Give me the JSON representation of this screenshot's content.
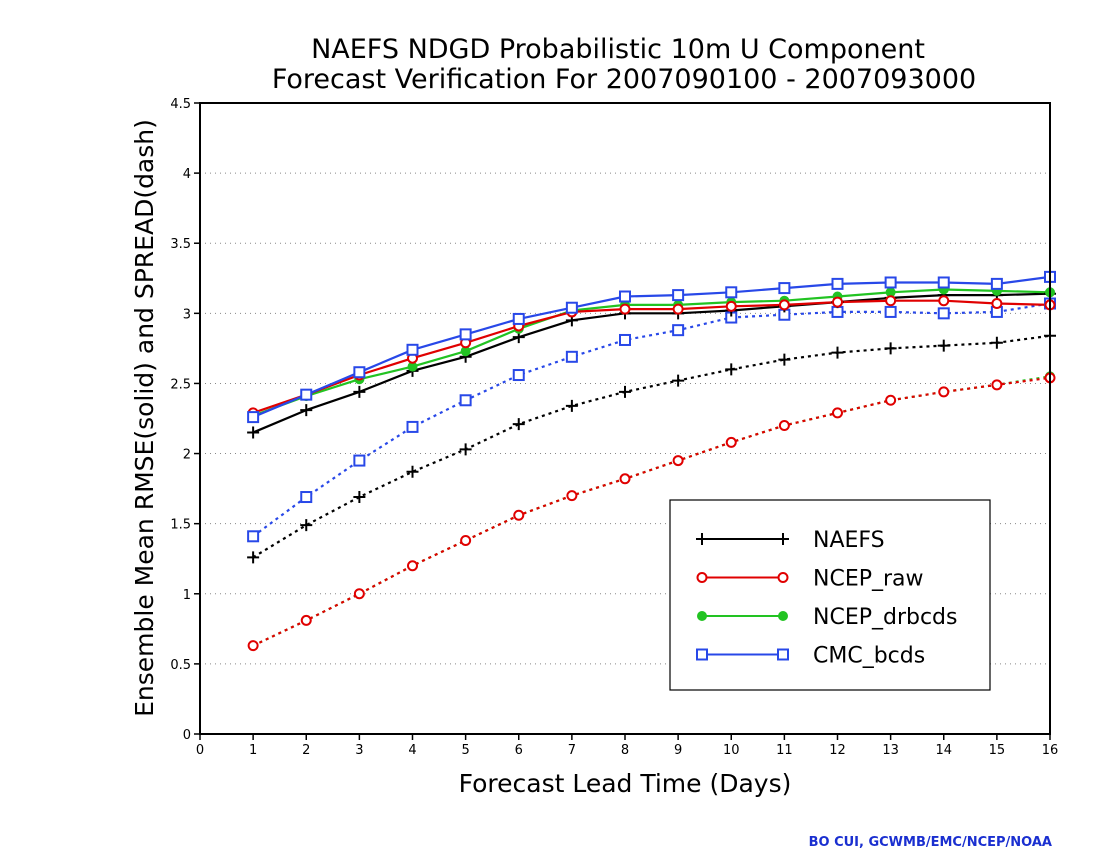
{
  "chart_data": {
    "type": "line",
    "title": [
      "NAEFS NDGD Probabilistic 10m U Component",
      "Forecast Verification For 2007090100 - 2007093000"
    ],
    "xlabel": "Forecast Lead Time (Days)",
    "ylabel": "Ensemble Mean RMSE(solid) and SPREAD(dash)",
    "xlim": [
      0,
      16
    ],
    "ylim": [
      0,
      4.5
    ],
    "x_ticks": [
      0,
      1,
      2,
      3,
      4,
      5,
      6,
      7,
      8,
      9,
      10,
      11,
      12,
      13,
      14,
      15,
      16
    ],
    "y_ticks": [
      0,
      0.5,
      1,
      1.5,
      2,
      2.5,
      3,
      3.5,
      4,
      4.5
    ],
    "y_tick_labels": [
      "0",
      "0.5",
      "1",
      "1.5",
      "2",
      "2.5",
      "3",
      "3.5",
      "4",
      "4.5"
    ],
    "grid": "horizontal dotted",
    "legend_position": "lower-right",
    "x": [
      1,
      2,
      3,
      4,
      5,
      6,
      7,
      8,
      9,
      10,
      11,
      12,
      13,
      14,
      15,
      16
    ],
    "series": [
      {
        "name": "NAEFS",
        "marker": "plus",
        "color": "#000000",
        "rmse": [
          2.15,
          2.31,
          2.44,
          2.59,
          2.69,
          2.83,
          2.95,
          3.0,
          3.0,
          3.02,
          3.05,
          3.08,
          3.11,
          3.13,
          3.13,
          3.14
        ],
        "spread": [
          1.26,
          1.49,
          1.69,
          1.87,
          2.03,
          2.21,
          2.34,
          2.44,
          2.52,
          2.6,
          2.67,
          2.72,
          2.75,
          2.77,
          2.79,
          2.84
        ]
      },
      {
        "name": "NCEP_raw",
        "marker": "open-circle",
        "color": "#e00000",
        "rmse": [
          2.29,
          2.42,
          2.56,
          2.68,
          2.79,
          2.91,
          3.01,
          3.03,
          3.03,
          3.05,
          3.06,
          3.08,
          3.09,
          3.09,
          3.07,
          3.06
        ],
        "spread": [
          0.63,
          0.81,
          1.0,
          1.2,
          1.38,
          1.56,
          1.7,
          1.82,
          1.95,
          2.08,
          2.2,
          2.29,
          2.38,
          2.44,
          2.49,
          2.54
        ]
      },
      {
        "name": "NCEP_drbcds",
        "marker": "filled-circle",
        "color": "#22c322",
        "rmse": [
          2.27,
          2.41,
          2.53,
          2.62,
          2.73,
          2.89,
          3.02,
          3.06,
          3.06,
          3.08,
          3.09,
          3.12,
          3.15,
          3.17,
          3.16,
          3.15
        ],
        "spread": [
          0.63,
          0.81,
          1.0,
          1.2,
          1.38,
          1.56,
          1.7,
          1.82,
          1.95,
          2.08,
          2.2,
          2.29,
          2.38,
          2.44,
          2.49,
          2.55
        ]
      },
      {
        "name": "CMC_bcds",
        "marker": "open-square",
        "color": "#2848e8",
        "rmse": [
          2.26,
          2.42,
          2.58,
          2.74,
          2.85,
          2.96,
          3.04,
          3.12,
          3.13,
          3.15,
          3.18,
          3.21,
          3.22,
          3.22,
          3.21,
          3.26
        ],
        "spread": [
          1.41,
          1.69,
          1.95,
          2.19,
          2.38,
          2.56,
          2.69,
          2.81,
          2.88,
          2.97,
          2.99,
          3.01,
          3.01,
          3.0,
          3.01,
          3.07
        ]
      }
    ]
  },
  "credit": "BO CUI, GCWMB/EMC/NCEP/NOAA"
}
